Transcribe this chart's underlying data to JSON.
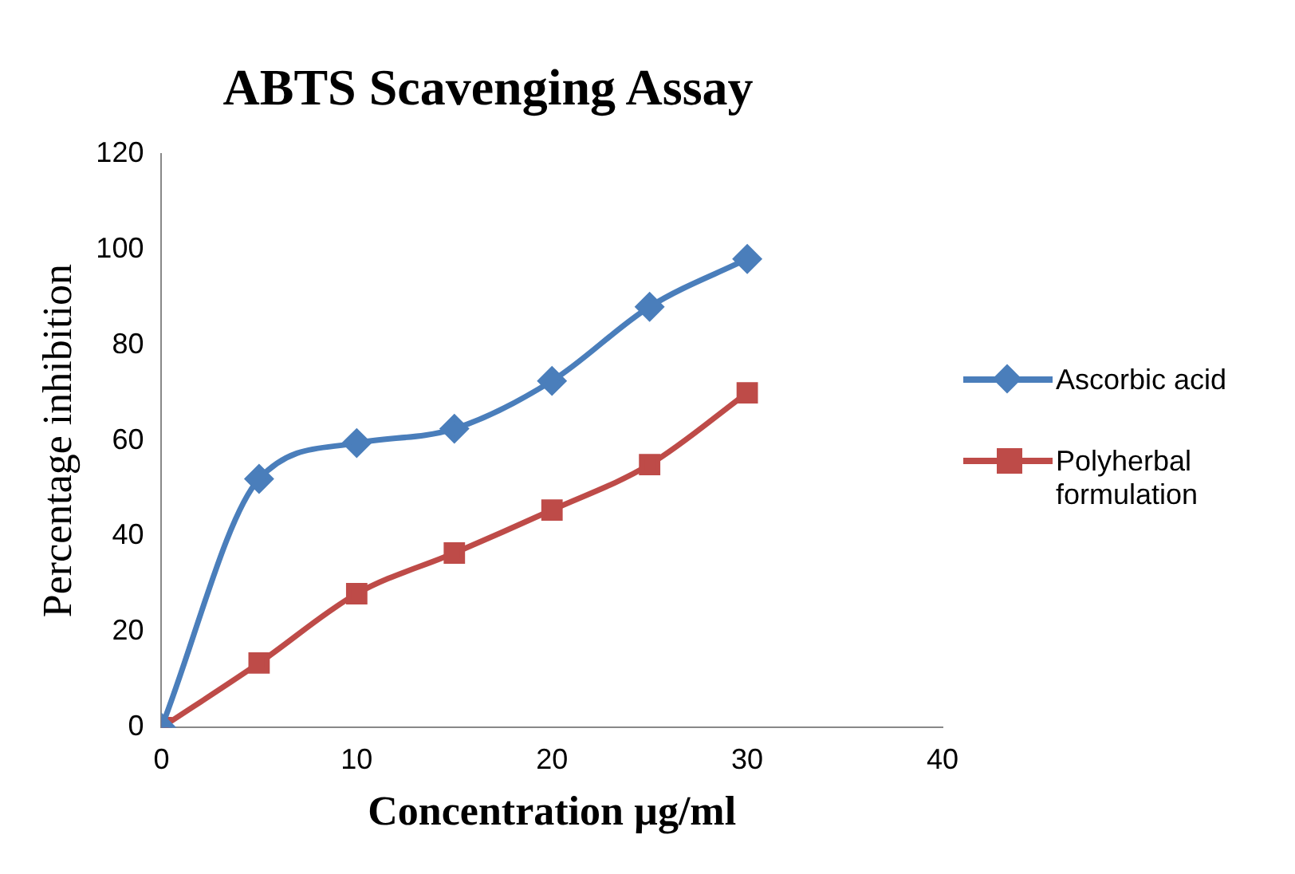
{
  "chart_data": {
    "type": "line",
    "title": "ABTS Scavenging Assay",
    "xlabel": "Concentration µg/ml",
    "ylabel": "Percentage inhibition",
    "x": [
      0,
      5,
      10,
      15,
      20,
      25,
      30
    ],
    "series": [
      {
        "name": "Ascorbic acid",
        "color": "#4a7ebb",
        "marker": "diamond",
        "values": [
          0,
          52,
          59.5,
          62.5,
          72.5,
          88,
          98
        ]
      },
      {
        "name": "Polyherbal formulation",
        "color": "#be4b48",
        "marker": "square",
        "values": [
          0,
          13.5,
          28,
          36.5,
          45.5,
          55,
          70
        ]
      }
    ],
    "xlim": [
      0,
      40
    ],
    "xticks": [
      0,
      10,
      20,
      30,
      40
    ],
    "ylim": [
      0,
      120
    ],
    "yticks": [
      0,
      20,
      40,
      60,
      80,
      100,
      120
    ],
    "grid": false,
    "legend": "right",
    "line_style": "solid"
  }
}
